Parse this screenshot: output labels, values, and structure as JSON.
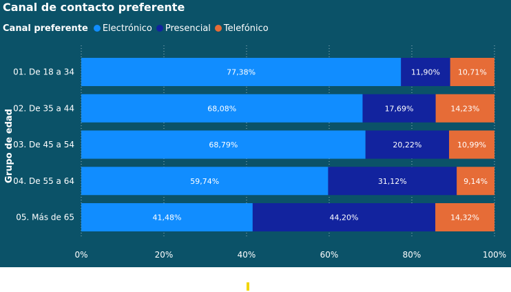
{
  "title": "Canal de contacto preferente",
  "legend": {
    "title": "Canal preferente",
    "items": [
      {
        "label": "Electrónico",
        "color": "#118dff"
      },
      {
        "label": "Presencial",
        "color": "#12239e"
      },
      {
        "label": "Telefónico",
        "color": "#e66c37"
      }
    ]
  },
  "chart_data": {
    "type": "bar",
    "orientation": "horizontal",
    "stacked": "100%",
    "title": "Canal de contacto preferente",
    "ylabel": "Grupo de edad",
    "xlabel": "",
    "xlim": [
      0,
      100
    ],
    "xticks": [
      "0%",
      "20%",
      "40%",
      "60%",
      "80%",
      "100%"
    ],
    "legend_position": "top-left",
    "grid": true,
    "categories": [
      "01. De 18 a 34",
      "02. De 35 a 44",
      "03. De 45 a 54",
      "04. De 55 a 64",
      "05. Más de 65"
    ],
    "series": [
      {
        "name": "Electrónico",
        "color": "#118dff",
        "values": [
          77.38,
          68.08,
          68.79,
          59.74,
          41.48
        ],
        "labels": [
          "77,38%",
          "68,08%",
          "68,79%",
          "59,74%",
          "41,48%"
        ]
      },
      {
        "name": "Presencial",
        "color": "#12239e",
        "values": [
          11.9,
          17.69,
          20.22,
          31.12,
          44.2
        ],
        "labels": [
          "11,90%",
          "17,69%",
          "20,22%",
          "31,12%",
          "44,20%"
        ]
      },
      {
        "name": "Telefónico",
        "color": "#e66c37",
        "values": [
          10.71,
          14.23,
          10.99,
          9.14,
          14.32
        ],
        "labels": [
          "10,71%",
          "14,23%",
          "10,99%",
          "9,14%",
          "14,32%"
        ]
      }
    ]
  }
}
